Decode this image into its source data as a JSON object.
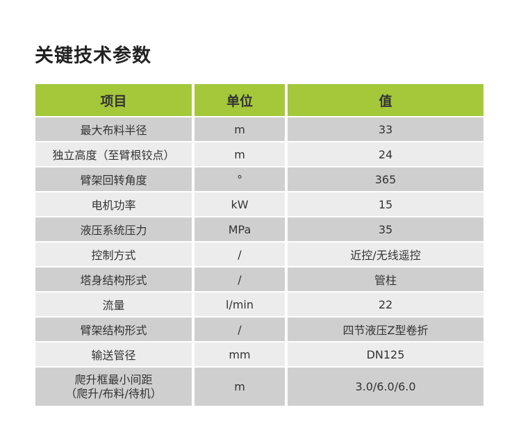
{
  "title": "关键技术参数",
  "headers": [
    "项目",
    "单位",
    "值"
  ],
  "rows": [
    [
      "最大布料半径",
      "m",
      "33"
    ],
    [
      "独立高度（至臂根铰点）",
      "m",
      "24"
    ],
    [
      "臂架回转角度",
      "°",
      "365"
    ],
    [
      "电机功率",
      "kW",
      "15"
    ],
    [
      "液压系统压力",
      "MPa",
      "35"
    ],
    [
      "控制方式",
      "/",
      "近控/无线遥控"
    ],
    [
      "塔身结构形式",
      "/",
      "管柱"
    ],
    [
      "流量",
      "l/min",
      "22"
    ],
    [
      "臂架结构形式",
      "/",
      "四节液压Z型卷折"
    ],
    [
      "输送管径",
      "mm",
      "DN125"
    ],
    [
      "爬升框最小间距（爬升/布料/待机）",
      "m",
      "3.0/6.0/6.0"
    ]
  ],
  "colors": {
    "header": "#a5c83a",
    "row_dark": "#cfcfcf",
    "row_light": "#ececec"
  }
}
